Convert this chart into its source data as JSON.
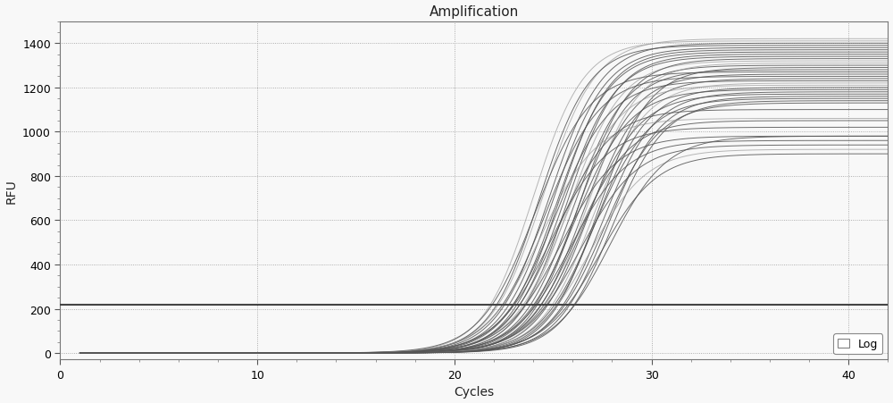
{
  "title": "Amplification",
  "xlabel": "Cycles",
  "ylabel": "RFU",
  "xlim": [
    0,
    42
  ],
  "ylim": [
    -30,
    1500
  ],
  "xticks": [
    0,
    10,
    20,
    30,
    40
  ],
  "yticks": [
    0,
    200,
    400,
    600,
    800,
    1000,
    1200,
    1400
  ],
  "threshold_y": 220,
  "threshold_color": "#444444",
  "background_color": "#f8f8f8",
  "plot_bg_color": "#f0f0f0",
  "grid_color": "#999999",
  "curve_color_dark": "#555555",
  "curve_color_light": "#999999",
  "sigmoid_midpoints": [
    24.5,
    24.8,
    25.0,
    25.2,
    25.5,
    25.8,
    26.0,
    26.2,
    26.5,
    26.8,
    27.0,
    27.2,
    27.5,
    27.8,
    28.0,
    24.0,
    24.3,
    25.3,
    25.7,
    26.3,
    26.7,
    27.3,
    24.1,
    24.6,
    25.1,
    25.6,
    26.1,
    26.6,
    27.1,
    27.6,
    24.4,
    24.9,
    25.4,
    25.9,
    26.4,
    26.9,
    27.4,
    27.9,
    25.2,
    26.2
  ],
  "plateau_values": [
    1420,
    1400,
    1380,
    1360,
    1340,
    1320,
    1300,
    1280,
    1260,
    1240,
    1220,
    1200,
    1180,
    1160,
    1140,
    1410,
    1390,
    1370,
    1350,
    1330,
    1310,
    1290,
    1270,
    1250,
    1230,
    1210,
    1190,
    1170,
    1150,
    1130,
    1060,
    1020,
    980,
    960,
    940,
    920,
    900,
    980,
    1100,
    1050
  ],
  "steepness": [
    0.75,
    0.75,
    0.75,
    0.75,
    0.75,
    0.75,
    0.75,
    0.75,
    0.75,
    0.75,
    0.75,
    0.75,
    0.75,
    0.75,
    0.75,
    0.78,
    0.78,
    0.78,
    0.78,
    0.78,
    0.78,
    0.78,
    0.72,
    0.72,
    0.72,
    0.72,
    0.72,
    0.72,
    0.72,
    0.72,
    0.7,
    0.7,
    0.7,
    0.7,
    0.7,
    0.7,
    0.7,
    0.7,
    0.74,
    0.74
  ],
  "figsize": [
    10.0,
    4.52
  ],
  "dpi": 100,
  "legend_label": "Log",
  "title_fontsize": 11,
  "axis_label_fontsize": 10,
  "tick_fontsize": 9
}
